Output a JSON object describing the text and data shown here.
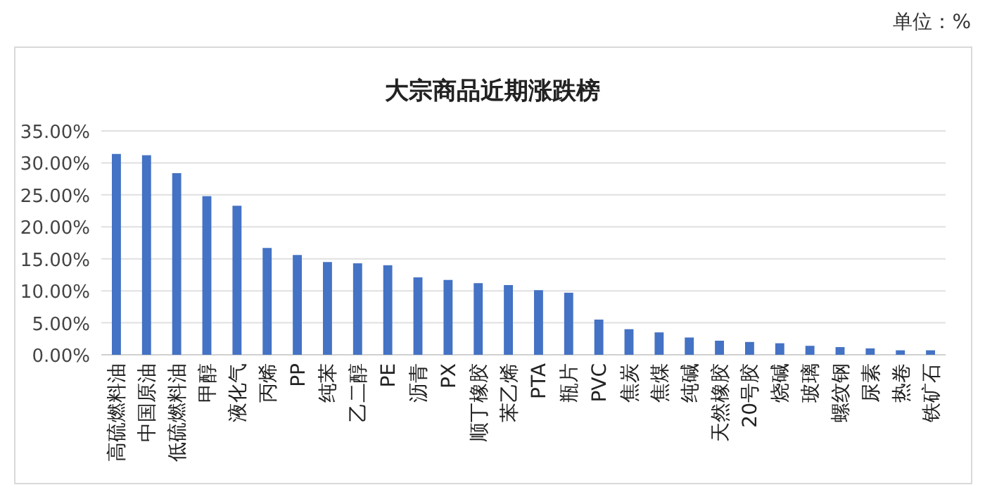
{
  "chart_data": {
    "type": "bar",
    "title": "大宗商品近期涨跌榜",
    "annotations": [
      "单位：%"
    ],
    "categories": [
      "高硫燃料油",
      "中国原油",
      "低硫燃料油",
      "甲醇",
      "液化气",
      "丙烯",
      "PP",
      "纯苯",
      "乙二醇",
      "PE",
      "沥青",
      "PX",
      "顺丁橡胶",
      "苯乙烯",
      "PTA",
      "瓶片",
      "PVC",
      "焦炭",
      "焦煤",
      "纯碱",
      "天然橡胶",
      "20号胶",
      "烧碱",
      "玻璃",
      "螺纹钢",
      "尿素",
      "热卷",
      "铁矿石"
    ],
    "values": [
      31.4,
      31.2,
      28.4,
      24.8,
      23.3,
      16.7,
      15.6,
      14.5,
      14.3,
      14.0,
      12.1,
      11.7,
      11.2,
      10.9,
      10.1,
      9.7,
      5.5,
      4.0,
      3.5,
      2.7,
      2.2,
      2.0,
      1.8,
      1.4,
      1.2,
      1.0,
      0.7,
      0.7
    ],
    "color": "#4472c4",
    "ylim": [
      0,
      35
    ],
    "yticks": [
      {
        "value": 0,
        "label": "0.00%"
      },
      {
        "value": 5,
        "label": "5.00%"
      },
      {
        "value": 10,
        "label": "10.00%"
      },
      {
        "value": 15,
        "label": "15.00%"
      },
      {
        "value": 20,
        "label": "20.00%"
      },
      {
        "value": 25,
        "label": "25.00%"
      },
      {
        "value": 30,
        "label": "30.00%"
      },
      {
        "value": 35,
        "label": "35.00%"
      }
    ],
    "grid": "y"
  }
}
